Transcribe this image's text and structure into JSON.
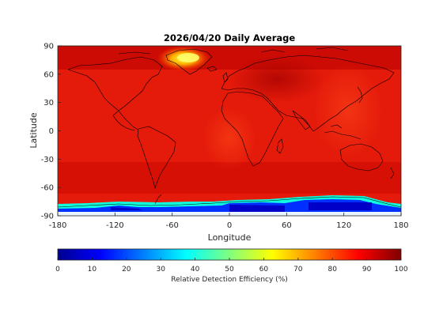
{
  "map": {
    "title": "2026/04/20 Daily Average",
    "xlabel": "Longitude",
    "ylabel": "Latitude",
    "xticks": [
      "-180",
      "-120",
      "-60",
      "0",
      "60",
      "120",
      "180"
    ],
    "yticks": [
      "90",
      "60",
      "30",
      "0",
      "-30",
      "-60",
      "-90"
    ],
    "xlim": [
      -180,
      180
    ],
    "ylim": [
      -90,
      90
    ],
    "colormap": "jet",
    "background_value_percent": 88
  },
  "colorbar": {
    "label": "Relative Detection Efficiency (%)",
    "ticks": [
      "0",
      "10",
      "20",
      "30",
      "40",
      "50",
      "60",
      "70",
      "80",
      "90",
      "100"
    ],
    "range": [
      0,
      100
    ]
  }
}
